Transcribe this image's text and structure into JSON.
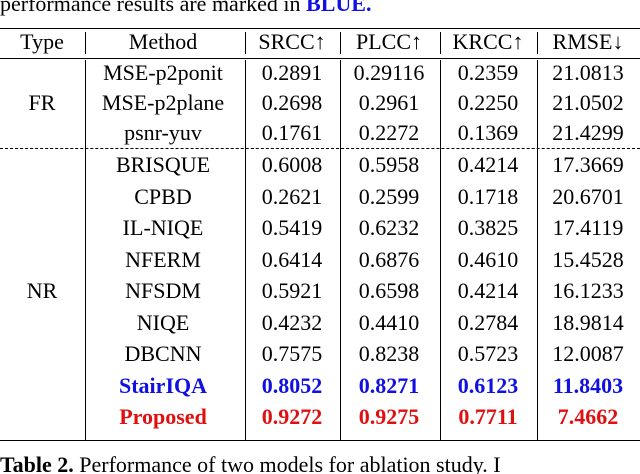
{
  "caption_top": {
    "text": "performance results are marked in",
    "emphasis": "BLUE."
  },
  "table": {
    "header": [
      "Type",
      "Method",
      "SRCC↑",
      "PLCC↑",
      "KRCC↑",
      "RMSE↓"
    ],
    "groups": [
      {
        "type": "FR",
        "rows": [
          {
            "cells": [
              "MSE-p2ponit",
              "0.2891",
              "0.29116",
              "0.2359",
              "21.0813"
            ]
          },
          {
            "cells": [
              "MSE-p2plane",
              "0.2698",
              "0.2961",
              "0.2250",
              "21.0502"
            ]
          },
          {
            "cells": [
              "psnr-yuv",
              "0.1761",
              "0.2272",
              "0.1369",
              "21.4299"
            ]
          }
        ]
      },
      {
        "type": "NR",
        "rows": [
          {
            "cells": [
              "BRISQUE",
              "0.6008",
              "0.5958",
              "0.4214",
              "17.3669"
            ]
          },
          {
            "cells": [
              "CPBD",
              "0.2621",
              "0.2599",
              "0.1718",
              "20.6701"
            ]
          },
          {
            "cells": [
              "IL-NIQE",
              "0.5419",
              "0.6232",
              "0.3825",
              "17.4119"
            ]
          },
          {
            "cells": [
              "NFERM",
              "0.6414",
              "0.6876",
              "0.4610",
              "15.4528"
            ]
          },
          {
            "cells": [
              "NFSDM",
              "0.5921",
              "0.6598",
              "0.4214",
              "16.1233"
            ]
          },
          {
            "cells": [
              "NIQE",
              "0.4232",
              "0.4410",
              "0.2784",
              "18.9814"
            ]
          },
          {
            "cells": [
              "DBCNN",
              "0.7575",
              "0.8238",
              "0.5723",
              "12.0087"
            ]
          },
          {
            "cells": [
              "StairIQA",
              "0.8052",
              "0.8271",
              "0.6123",
              "11.8403"
            ],
            "color": "#1010e0"
          },
          {
            "cells": [
              "Proposed",
              "0.9272",
              "0.9275",
              "0.7711",
              "7.4662"
            ],
            "color": "#e01010"
          }
        ]
      }
    ]
  },
  "caption_bottom": {
    "label": "Table 2.",
    "text": "Performance of two models for ablation study. I"
  }
}
